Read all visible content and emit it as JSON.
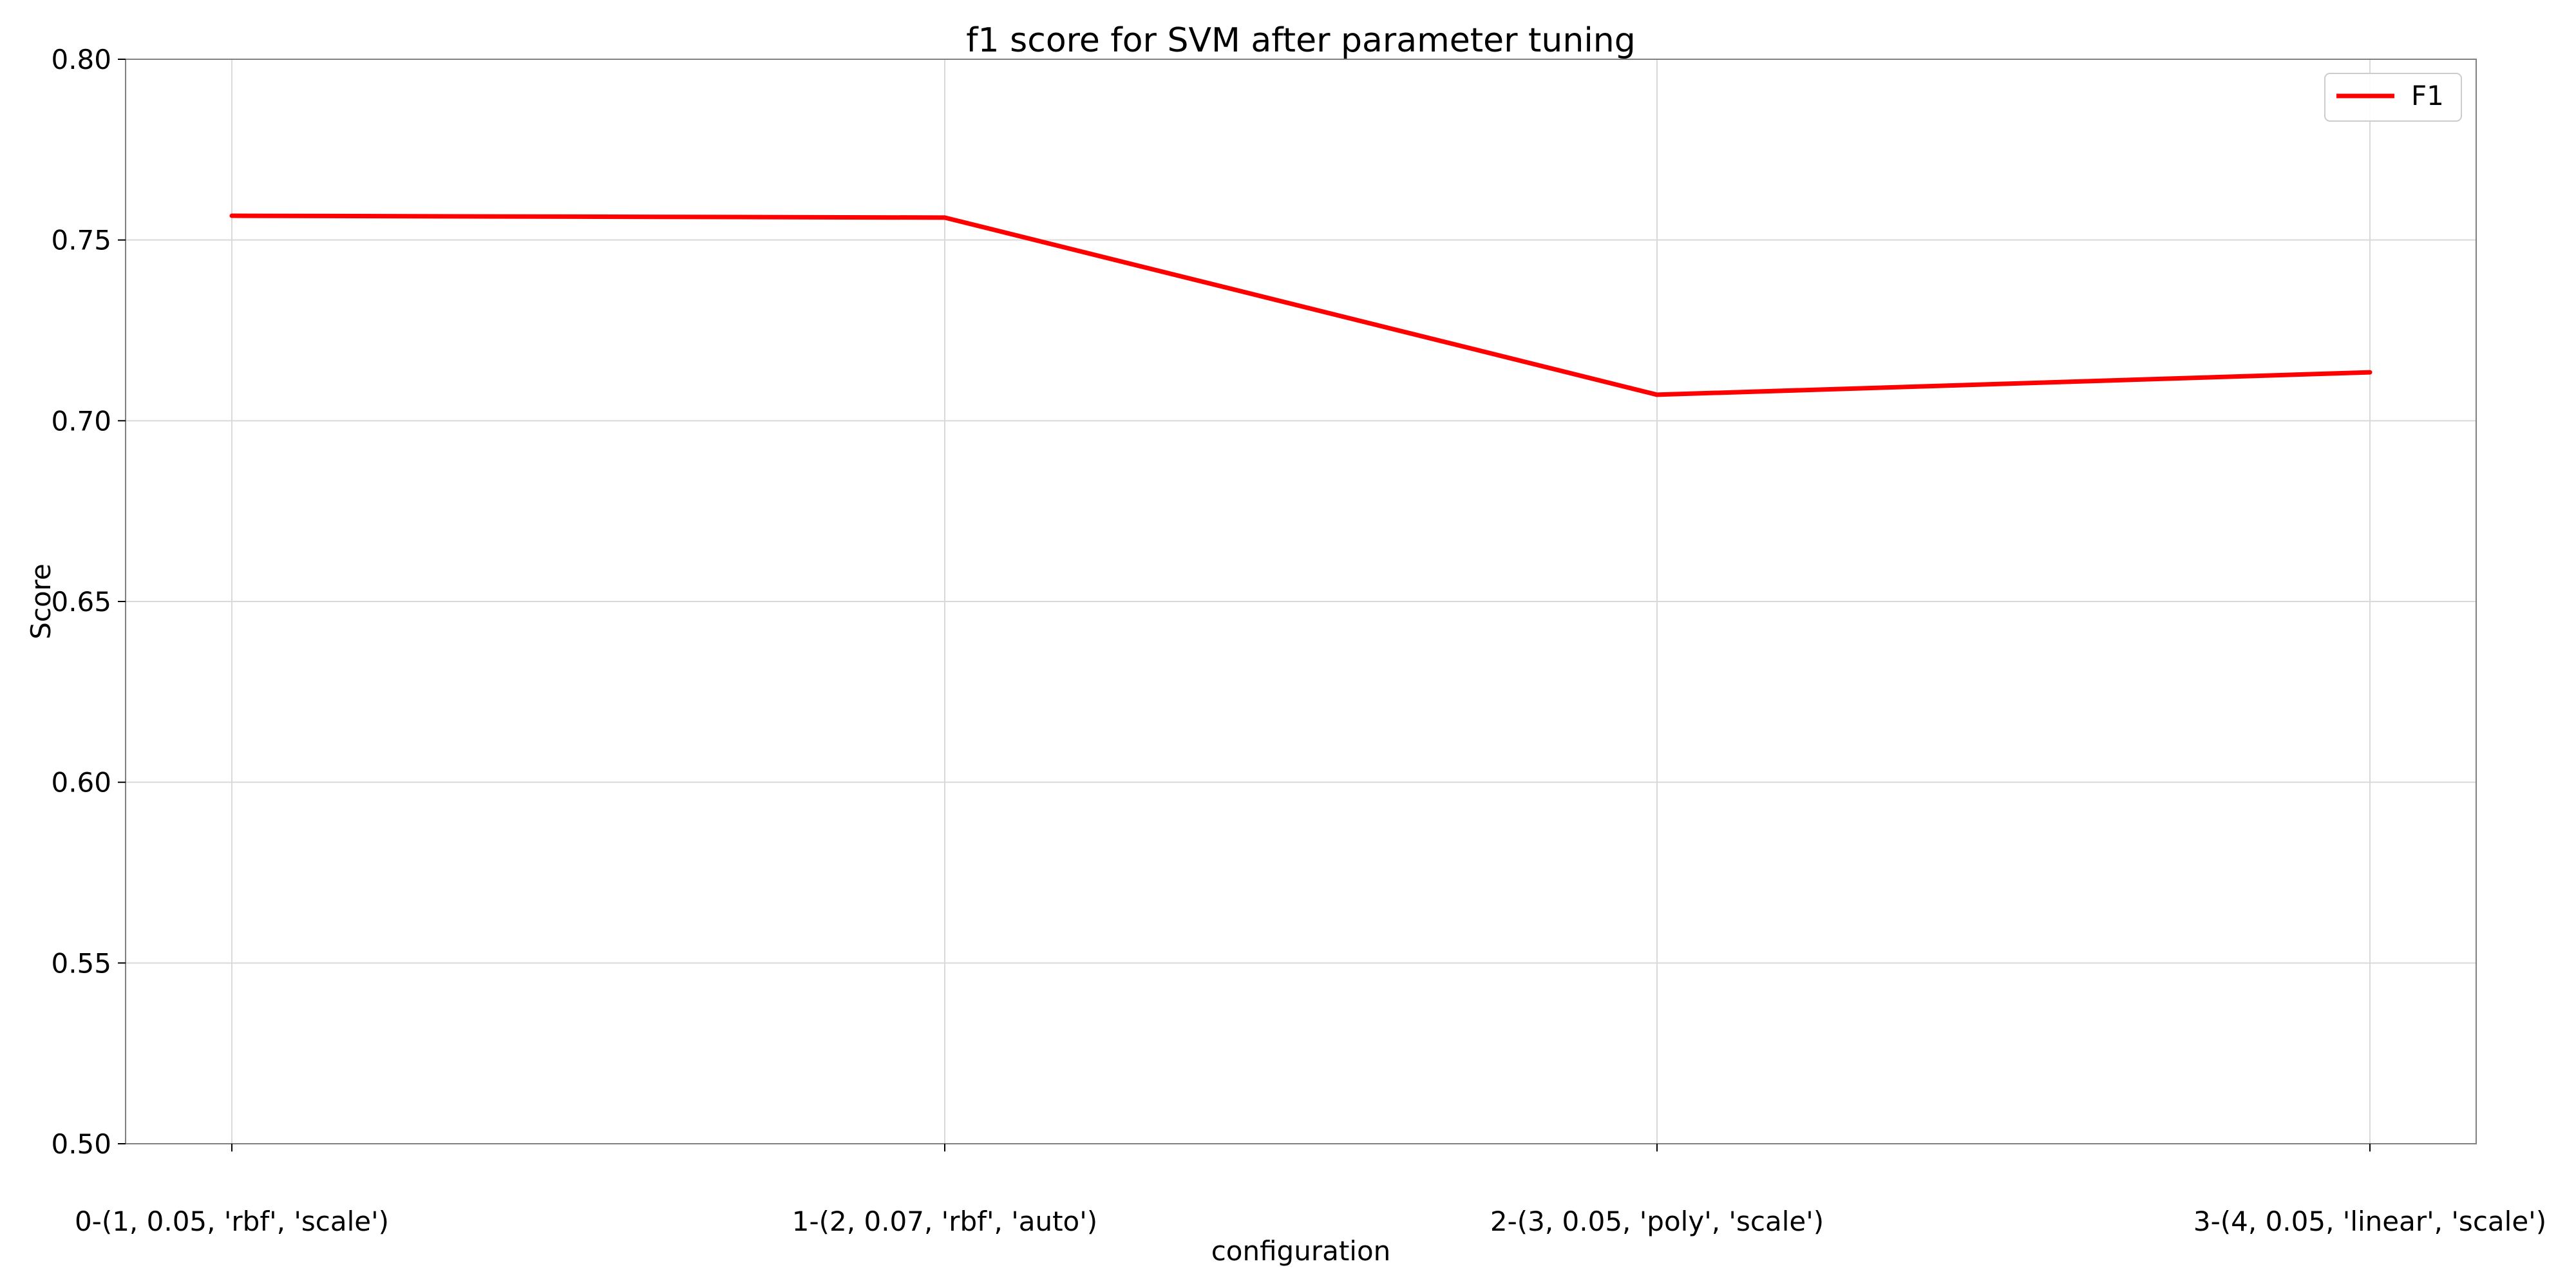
{
  "chart_data": {
    "type": "line",
    "title": "f1 score for SVM after parameter tuning",
    "xlabel": "configuration",
    "ylabel": "Score",
    "categories": [
      "0-(1, 0.05, 'rbf', 'scale')",
      "1-(2, 0.07, 'rbf', 'auto')",
      "2-(3, 0.05, 'poly', 'scale')",
      "3-(4, 0.05, 'linear', 'scale')"
    ],
    "series": [
      {
        "name": "F1",
        "values": [
          0.7567,
          0.7562,
          0.7072,
          0.7134
        ],
        "color": "#ff0000"
      }
    ],
    "ylim": [
      0.5,
      0.8
    ],
    "yticks": [
      0.5,
      0.55,
      0.6,
      0.65,
      0.7,
      0.75,
      0.8
    ],
    "ytick_labels": [
      "0.50",
      "0.55",
      "0.60",
      "0.65",
      "0.70",
      "0.75",
      "0.80"
    ],
    "grid": true,
    "legend": "top-right"
  }
}
